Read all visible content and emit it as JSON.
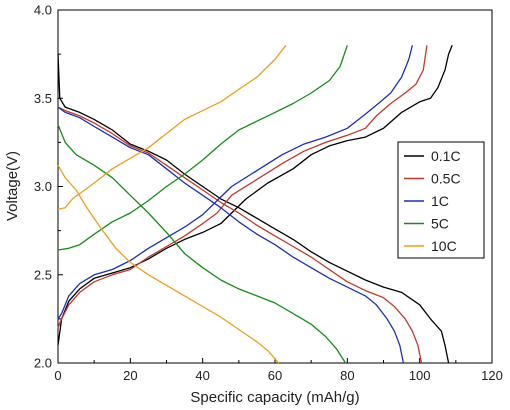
{
  "chart_data": {
    "type": "line",
    "title": "",
    "xlabel": "Specific capacity (mAh/g)",
    "ylabel": "Voltage(V)",
    "xlim": [
      0,
      120
    ],
    "ylim": [
      2.0,
      4.0
    ],
    "xticks": [
      0,
      20,
      40,
      60,
      80,
      100,
      120
    ],
    "yticks": [
      2.0,
      2.5,
      3.0,
      3.5,
      4.0
    ],
    "xtick_labels": [
      "0",
      "20",
      "40",
      "60",
      "80",
      "100",
      "120"
    ],
    "ytick_labels": [
      "2.0",
      "2.5",
      "3.0",
      "3.5",
      "4.0"
    ],
    "grid": false,
    "legend_position": "right",
    "series": [
      {
        "name": "0.1C",
        "color": "#000000",
        "charge": [
          [
            0,
            2.1
          ],
          [
            1,
            2.25
          ],
          [
            3,
            2.35
          ],
          [
            6,
            2.42
          ],
          [
            10,
            2.48
          ],
          [
            15,
            2.51
          ],
          [
            20,
            2.54
          ],
          [
            25,
            2.59
          ],
          [
            30,
            2.65
          ],
          [
            35,
            2.7
          ],
          [
            40,
            2.74
          ],
          [
            45,
            2.79
          ],
          [
            48,
            2.85
          ],
          [
            52,
            2.93
          ],
          [
            58,
            3.02
          ],
          [
            65,
            3.1
          ],
          [
            70,
            3.18
          ],
          [
            75,
            3.23
          ],
          [
            80,
            3.26
          ],
          [
            85,
            3.28
          ],
          [
            90,
            3.33
          ],
          [
            95,
            3.42
          ],
          [
            100,
            3.48
          ],
          [
            103,
            3.5
          ],
          [
            105,
            3.56
          ],
          [
            107,
            3.66
          ],
          [
            108,
            3.75
          ],
          [
            109,
            3.8
          ]
        ],
        "discharge": [
          [
            0,
            3.75
          ],
          [
            0.5,
            3.5
          ],
          [
            2,
            3.45
          ],
          [
            6,
            3.42
          ],
          [
            10,
            3.38
          ],
          [
            15,
            3.32
          ],
          [
            20,
            3.24
          ],
          [
            25,
            3.2
          ],
          [
            30,
            3.15
          ],
          [
            35,
            3.07
          ],
          [
            40,
            3.0
          ],
          [
            45,
            2.93
          ],
          [
            50,
            2.88
          ],
          [
            55,
            2.82
          ],
          [
            60,
            2.76
          ],
          [
            65,
            2.7
          ],
          [
            70,
            2.63
          ],
          [
            75,
            2.57
          ],
          [
            80,
            2.52
          ],
          [
            85,
            2.47
          ],
          [
            90,
            2.43
          ],
          [
            95,
            2.4
          ],
          [
            100,
            2.33
          ],
          [
            103,
            2.25
          ],
          [
            106,
            2.18
          ],
          [
            107,
            2.1
          ],
          [
            108,
            2.0
          ]
        ]
      },
      {
        "name": "0.5C",
        "color": "#c0392b",
        "charge": [
          [
            0,
            2.2
          ],
          [
            1,
            2.25
          ],
          [
            3,
            2.33
          ],
          [
            6,
            2.4
          ],
          [
            10,
            2.46
          ],
          [
            15,
            2.5
          ],
          [
            20,
            2.53
          ],
          [
            25,
            2.6
          ],
          [
            30,
            2.66
          ],
          [
            35,
            2.72
          ],
          [
            40,
            2.79
          ],
          [
            44,
            2.85
          ],
          [
            48,
            2.95
          ],
          [
            55,
            3.04
          ],
          [
            62,
            3.13
          ],
          [
            68,
            3.2
          ],
          [
            74,
            3.25
          ],
          [
            80,
            3.29
          ],
          [
            85,
            3.33
          ],
          [
            88,
            3.4
          ],
          [
            92,
            3.47
          ],
          [
            96,
            3.53
          ],
          [
            99,
            3.58
          ],
          [
            101,
            3.66
          ],
          [
            102,
            3.8
          ]
        ],
        "discharge": [
          [
            0,
            3.45
          ],
          [
            2,
            3.43
          ],
          [
            6,
            3.4
          ],
          [
            10,
            3.36
          ],
          [
            15,
            3.3
          ],
          [
            20,
            3.23
          ],
          [
            25,
            3.19
          ],
          [
            30,
            3.12
          ],
          [
            35,
            3.05
          ],
          [
            40,
            2.98
          ],
          [
            45,
            2.91
          ],
          [
            50,
            2.85
          ],
          [
            55,
            2.78
          ],
          [
            60,
            2.72
          ],
          [
            65,
            2.66
          ],
          [
            70,
            2.6
          ],
          [
            75,
            2.53
          ],
          [
            80,
            2.46
          ],
          [
            85,
            2.41
          ],
          [
            90,
            2.37
          ],
          [
            93,
            2.32
          ],
          [
            96,
            2.25
          ],
          [
            98,
            2.18
          ],
          [
            99.5,
            2.1
          ],
          [
            100.5,
            2.0
          ]
        ]
      },
      {
        "name": "1C",
        "color": "#1f2fb3",
        "charge": [
          [
            0,
            2.25
          ],
          [
            1,
            2.28
          ],
          [
            3,
            2.38
          ],
          [
            6,
            2.45
          ],
          [
            10,
            2.5
          ],
          [
            15,
            2.53
          ],
          [
            20,
            2.58
          ],
          [
            25,
            2.65
          ],
          [
            30,
            2.71
          ],
          [
            35,
            2.77
          ],
          [
            40,
            2.84
          ],
          [
            44,
            2.92
          ],
          [
            48,
            3.0
          ],
          [
            55,
            3.09
          ],
          [
            62,
            3.18
          ],
          [
            68,
            3.24
          ],
          [
            74,
            3.28
          ],
          [
            80,
            3.33
          ],
          [
            85,
            3.41
          ],
          [
            88,
            3.46
          ],
          [
            92,
            3.53
          ],
          [
            95,
            3.62
          ],
          [
            97,
            3.72
          ],
          [
            98,
            3.8
          ]
        ],
        "discharge": [
          [
            0,
            3.45
          ],
          [
            2,
            3.42
          ],
          [
            6,
            3.39
          ],
          [
            10,
            3.34
          ],
          [
            15,
            3.28
          ],
          [
            20,
            3.22
          ],
          [
            25,
            3.18
          ],
          [
            30,
            3.1
          ],
          [
            35,
            3.02
          ],
          [
            40,
            2.95
          ],
          [
            45,
            2.88
          ],
          [
            50,
            2.8
          ],
          [
            55,
            2.73
          ],
          [
            60,
            2.67
          ],
          [
            65,
            2.6
          ],
          [
            70,
            2.54
          ],
          [
            75,
            2.48
          ],
          [
            80,
            2.43
          ],
          [
            85,
            2.38
          ],
          [
            88,
            2.33
          ],
          [
            91,
            2.25
          ],
          [
            93,
            2.18
          ],
          [
            94.5,
            2.1
          ],
          [
            95.5,
            2.0
          ]
        ]
      },
      {
        "name": "5C",
        "color": "#1a8a1a",
        "charge": [
          [
            0,
            2.64
          ],
          [
            3,
            2.65
          ],
          [
            6,
            2.67
          ],
          [
            10,
            2.73
          ],
          [
            15,
            2.8
          ],
          [
            20,
            2.85
          ],
          [
            25,
            2.92
          ],
          [
            30,
            3.0
          ],
          [
            35,
            3.07
          ],
          [
            40,
            3.15
          ],
          [
            45,
            3.24
          ],
          [
            50,
            3.32
          ],
          [
            55,
            3.37
          ],
          [
            60,
            3.42
          ],
          [
            65,
            3.47
          ],
          [
            70,
            3.53
          ],
          [
            75,
            3.6
          ],
          [
            78,
            3.68
          ],
          [
            80,
            3.8
          ]
        ],
        "discharge": [
          [
            0,
            3.35
          ],
          [
            2,
            3.25
          ],
          [
            5,
            3.18
          ],
          [
            10,
            3.12
          ],
          [
            15,
            3.05
          ],
          [
            20,
            2.95
          ],
          [
            25,
            2.85
          ],
          [
            30,
            2.74
          ],
          [
            35,
            2.62
          ],
          [
            40,
            2.54
          ],
          [
            45,
            2.47
          ],
          [
            50,
            2.42
          ],
          [
            55,
            2.38
          ],
          [
            60,
            2.34
          ],
          [
            65,
            2.28
          ],
          [
            70,
            2.22
          ],
          [
            74,
            2.15
          ],
          [
            77,
            2.08
          ],
          [
            79.5,
            2.0
          ]
        ]
      },
      {
        "name": "10C",
        "color": "#e8a020",
        "charge": [
          [
            0,
            2.87
          ],
          [
            2,
            2.88
          ],
          [
            4,
            2.93
          ],
          [
            6,
            2.96
          ],
          [
            10,
            3.02
          ],
          [
            15,
            3.1
          ],
          [
            20,
            3.16
          ],
          [
            25,
            3.22
          ],
          [
            30,
            3.3
          ],
          [
            35,
            3.38
          ],
          [
            40,
            3.43
          ],
          [
            45,
            3.48
          ],
          [
            50,
            3.55
          ],
          [
            55,
            3.62
          ],
          [
            60,
            3.72
          ],
          [
            63,
            3.8
          ]
        ],
        "discharge": [
          [
            0,
            3.12
          ],
          [
            2,
            3.05
          ],
          [
            5,
            2.98
          ],
          [
            8,
            2.88
          ],
          [
            12,
            2.76
          ],
          [
            16,
            2.65
          ],
          [
            20,
            2.57
          ],
          [
            25,
            2.5
          ],
          [
            30,
            2.44
          ],
          [
            35,
            2.38
          ],
          [
            40,
            2.32
          ],
          [
            45,
            2.26
          ],
          [
            50,
            2.19
          ],
          [
            55,
            2.12
          ],
          [
            58,
            2.07
          ],
          [
            61,
            2.0
          ]
        ]
      }
    ]
  }
}
